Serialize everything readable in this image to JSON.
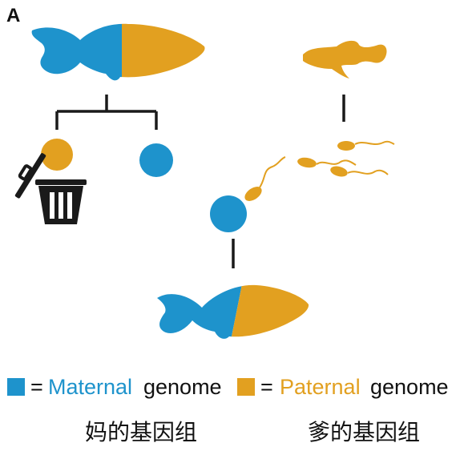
{
  "panel_label": "A",
  "colors": {
    "maternal": "#1e93cc",
    "paternal": "#e2a020",
    "line": "#1a1a1a"
  },
  "legend": {
    "maternal_equals": "=",
    "maternal_colored": "Maternal",
    "maternal_rest": "genome",
    "paternal_equals": "=",
    "paternal_colored": "Paternal",
    "paternal_rest": "genome"
  },
  "captions": {
    "mother_genome": "妈的基因组",
    "father_genome": "爹的基因组"
  },
  "icons": [
    "female-fish-icon",
    "male-fish-icon",
    "trash-can-icon",
    "sperm-icon",
    "egg-cell-icon",
    "offspring-fish-icon"
  ]
}
